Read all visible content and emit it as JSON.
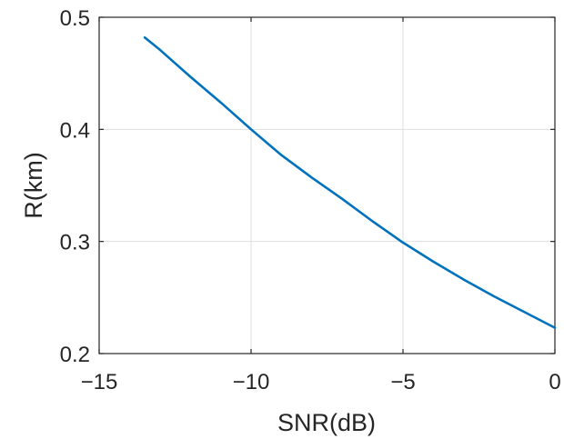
{
  "chart_data": {
    "type": "line",
    "title": "",
    "xlabel": "SNR(dB)",
    "ylabel": "R(km)",
    "xlim": [
      -15,
      0
    ],
    "ylim": [
      0.2,
      0.5
    ],
    "xticks": [
      -15,
      -10,
      -5,
      0
    ],
    "xtick_labels": [
      "−15",
      "−10",
      "−5",
      "0"
    ],
    "yticks": [
      0.2,
      0.3,
      0.4,
      0.5
    ],
    "ytick_labels": [
      "0.2",
      "0.3",
      "0.4",
      "0.5"
    ],
    "grid": true,
    "legend": "none",
    "series": [
      {
        "color": "#0072BD",
        "x": [
          -13.5,
          -13,
          -12,
          -11,
          -10,
          -9,
          -8,
          -7,
          -6,
          -5,
          -4,
          -3,
          -2,
          -1,
          0
        ],
        "y": [
          0.482,
          0.471,
          0.447,
          0.424,
          0.4,
          0.377,
          0.357,
          0.338,
          0.318,
          0.299,
          0.282,
          0.266,
          0.251,
          0.237,
          0.223
        ]
      }
    ]
  }
}
